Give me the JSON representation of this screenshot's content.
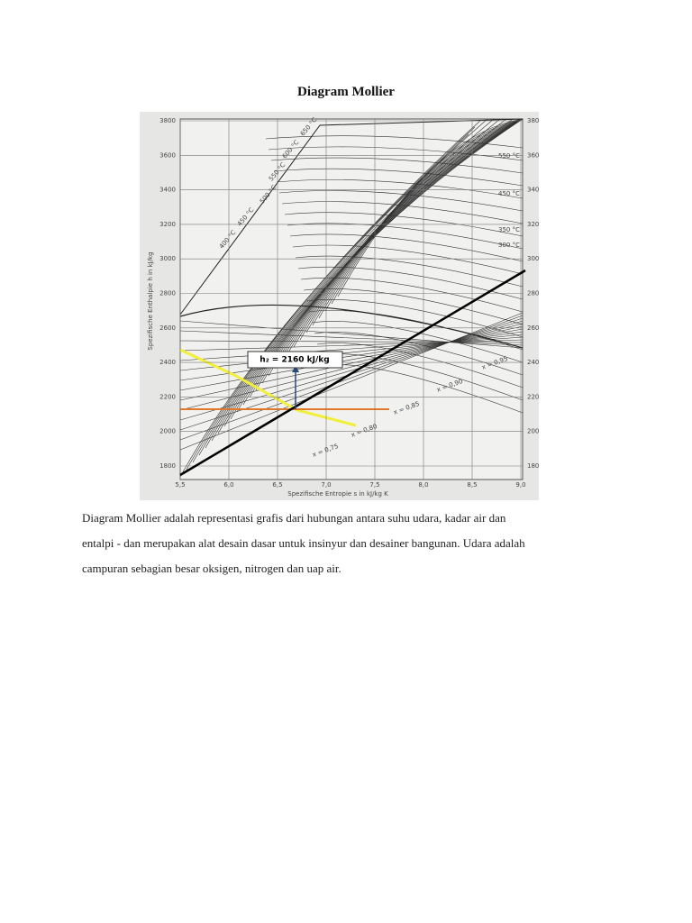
{
  "header": {
    "title": "Diagram Mollier"
  },
  "figure": {
    "y_axis_label": "Spezifische Enthalpie h in kJ/kg",
    "x_axis_label": "Spezifische Entropie s in kJ/kg K",
    "y_ticks": [
      3800,
      3600,
      3400,
      3200,
      3000,
      2800,
      2600,
      2400,
      2200,
      2000,
      1800
    ],
    "x_ticks": [
      "5,5",
      "6,0",
      "6,5",
      "7,0",
      "7,5",
      "8,0",
      "8,5",
      "9,0"
    ],
    "annotation": "h₂ = 2160 kJ/kg",
    "temperature_labels_left": [
      "650 °C",
      "600 °C",
      "550 °C",
      "500 °C",
      "450 °C",
      "400 °C"
    ],
    "temperature_labels_right": [
      "550 °C",
      "450 °C",
      "350 °C",
      "300 °C"
    ],
    "quality_labels": [
      "x = 0,95",
      "x = 0,90",
      "x = 0,85",
      "x = 0,80",
      "x = 0,75"
    ]
  },
  "body": {
    "lines": [
      "Diagram Mollier adalah representasi grafis dari hubungan antara suhu udara, kadar air dan",
      "entalpi - dan merupakan alat desain dasar untuk insinyur dan desainer bangunan. Udara adalah",
      "campuran sebagian besar oksigen, nitrogen dan uap air."
    ]
  }
}
